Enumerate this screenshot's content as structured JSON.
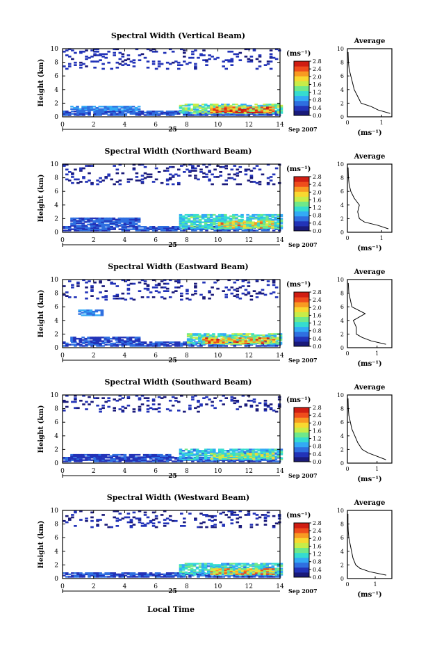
{
  "figure": {
    "common": {
      "time_ticks": [
        "0",
        "2",
        "4",
        "6",
        "8",
        "10",
        "12",
        "14"
      ],
      "height_ticks": [
        "0",
        "2",
        "4",
        "6",
        "8",
        "10"
      ],
      "ylabel": "Height (km)",
      "day_label": "25",
      "month_label": "Sep 2007",
      "colorbar_unit": "(ms⁻¹)",
      "colorbar_ticks": [
        "0.0",
        "0.4",
        "0.8",
        "1.2",
        "1.6",
        "2.0",
        "2.4",
        "2.8"
      ],
      "avg_title": "Average",
      "avg_xlabel": "(ms⁻¹)",
      "xlabel": "Local Time"
    },
    "colorscale": [
      "#1a1a7a",
      "#2233b8",
      "#2f6fe0",
      "#33aaf5",
      "#35dcd0",
      "#6fe88a",
      "#c8ec48",
      "#f8d830",
      "#f89a22",
      "#ef4c1c",
      "#d01d12"
    ]
  },
  "chart_data": [
    {
      "type": "heatmap",
      "title": "Spectral Width (Vertical Beam)",
      "xlim": [
        0,
        14
      ],
      "ylim": [
        0,
        10
      ],
      "clim": [
        0.0,
        2.8
      ],
      "bands": [
        {
          "x": [
            0,
            14
          ],
          "y": [
            0.2,
            0.9
          ],
          "v": 0.5
        },
        {
          "x": [
            0.5,
            5
          ],
          "y": [
            0.9,
            1.6
          ],
          "v": 0.7
        },
        {
          "x": [
            7.5,
            14
          ],
          "y": [
            0.5,
            1.8
          ],
          "v": 1.4
        },
        {
          "x": [
            9.5,
            13.5
          ],
          "y": [
            0.6,
            1.4
          ],
          "v": 2.4
        },
        {
          "x": [
            0,
            14
          ],
          "y": [
            7.0,
            10.0
          ],
          "v": 0.2
        }
      ],
      "avg_profile": {
        "xlim": [
          0,
          1.3
        ],
        "xticks": [
          "0",
          "1"
        ],
        "x": [
          1.25,
          0.9,
          0.7,
          0.4,
          0.3,
          0.2,
          0.15,
          0.1,
          0.05,
          0.03,
          0.02
        ],
        "y": [
          0.5,
          1.0,
          1.5,
          2.0,
          3.0,
          4.0,
          5.0,
          6.0,
          7.0,
          8.0,
          9.5
        ]
      }
    },
    {
      "type": "heatmap",
      "title": "Spectral Width (Northward Beam)",
      "xlim": [
        0,
        14
      ],
      "ylim": [
        0,
        10
      ],
      "clim": [
        0.0,
        2.8
      ],
      "bands": [
        {
          "x": [
            0,
            14
          ],
          "y": [
            0.2,
            0.9
          ],
          "v": 0.45
        },
        {
          "x": [
            0.5,
            5
          ],
          "y": [
            0.9,
            2.0
          ],
          "v": 0.5
        },
        {
          "x": [
            7.5,
            14
          ],
          "y": [
            0.5,
            2.5
          ],
          "v": 1.2
        },
        {
          "x": [
            10,
            13.5
          ],
          "y": [
            0.6,
            1.5
          ],
          "v": 1.9
        },
        {
          "x": [
            0,
            14
          ],
          "y": [
            7.0,
            10.0
          ],
          "v": 0.15
        }
      ],
      "avg_profile": {
        "xlim": [
          0,
          1.3
        ],
        "xticks": [
          "0",
          "1"
        ],
        "x": [
          1.2,
          0.9,
          0.5,
          0.35,
          0.3,
          0.35,
          0.2,
          0.1,
          0.05,
          0.03,
          0.02
        ],
        "y": [
          0.5,
          1.0,
          1.5,
          2.0,
          3.0,
          4.0,
          5.0,
          6.0,
          7.0,
          8.0,
          9.5
        ]
      }
    },
    {
      "type": "heatmap",
      "title": "Spectral Width (Eastward Beam)",
      "xlim": [
        0,
        14
      ],
      "ylim": [
        0,
        10
      ],
      "clim": [
        0.0,
        2.8
      ],
      "bands": [
        {
          "x": [
            0,
            14
          ],
          "y": [
            0.2,
            0.9
          ],
          "v": 0.45
        },
        {
          "x": [
            0.5,
            5
          ],
          "y": [
            0.9,
            1.5
          ],
          "v": 0.4
        },
        {
          "x": [
            1,
            2.5
          ],
          "y": [
            4.7,
            5.5
          ],
          "v": 0.7
        },
        {
          "x": [
            8,
            14
          ],
          "y": [
            0.5,
            2.0
          ],
          "v": 1.3
        },
        {
          "x": [
            9,
            13.5
          ],
          "y": [
            0.6,
            1.4
          ],
          "v": 2.2
        },
        {
          "x": [
            0,
            14
          ],
          "y": [
            7.0,
            10.0
          ],
          "v": 0.15
        }
      ],
      "avg_profile": {
        "xlim": [
          0,
          1.5
        ],
        "xticks": [
          "0",
          "1"
        ],
        "x": [
          1.3,
          0.8,
          0.5,
          0.3,
          0.3,
          0.2,
          0.6,
          0.15,
          0.1,
          0.05,
          0.03
        ],
        "y": [
          0.5,
          1.0,
          1.5,
          2.0,
          3.0,
          4.0,
          5.0,
          6.0,
          7.0,
          8.0,
          9.5
        ]
      }
    },
    {
      "type": "heatmap",
      "title": "Spectral Width (Southward Beam)",
      "xlim": [
        0,
        14
      ],
      "ylim": [
        0,
        10
      ],
      "clim": [
        0.0,
        2.8
      ],
      "bands": [
        {
          "x": [
            0,
            14
          ],
          "y": [
            0.2,
            0.8
          ],
          "v": 0.4
        },
        {
          "x": [
            0.5,
            7
          ],
          "y": [
            0.8,
            1.3
          ],
          "v": 0.4
        },
        {
          "x": [
            7.5,
            14
          ],
          "y": [
            0.5,
            2.0
          ],
          "v": 1.0
        },
        {
          "x": [
            9.5,
            13.5
          ],
          "y": [
            0.6,
            1.4
          ],
          "v": 1.6
        },
        {
          "x": [
            0,
            14
          ],
          "y": [
            7.5,
            10.0
          ],
          "v": 0.15
        }
      ],
      "avg_profile": {
        "xlim": [
          0,
          1.5
        ],
        "xticks": [
          "0",
          "1"
        ],
        "x": [
          1.3,
          1.0,
          0.7,
          0.5,
          0.35,
          0.25,
          0.15,
          0.1,
          0.05,
          0.03,
          0.02
        ],
        "y": [
          0.5,
          1.0,
          1.5,
          2.0,
          3.0,
          4.0,
          5.0,
          6.0,
          7.0,
          8.0,
          9.5
        ]
      }
    },
    {
      "type": "heatmap",
      "title": "Spectral Width (Westward Beam)",
      "xlim": [
        0,
        14
      ],
      "ylim": [
        0,
        10
      ],
      "clim": [
        0.0,
        2.8
      ],
      "bands": [
        {
          "x": [
            0,
            14
          ],
          "y": [
            0.2,
            0.8
          ],
          "v": 0.45
        },
        {
          "x": [
            7.5,
            14
          ],
          "y": [
            0.5,
            2.2
          ],
          "v": 1.1
        },
        {
          "x": [
            9.5,
            13.5
          ],
          "y": [
            0.6,
            1.4
          ],
          "v": 2.0
        },
        {
          "x": [
            0,
            14
          ],
          "y": [
            7.5,
            10.0
          ],
          "v": 0.15
        }
      ],
      "avg_profile": {
        "xlim": [
          0,
          1.6
        ],
        "xticks": [
          "0",
          "1"
        ],
        "x": [
          1.4,
          0.8,
          0.45,
          0.3,
          0.2,
          0.15,
          0.1,
          0.05,
          0.03,
          0.02,
          0.02
        ],
        "y": [
          0.5,
          1.0,
          1.5,
          2.0,
          3.0,
          4.0,
          5.0,
          6.0,
          7.0,
          8.0,
          9.5
        ]
      }
    }
  ]
}
